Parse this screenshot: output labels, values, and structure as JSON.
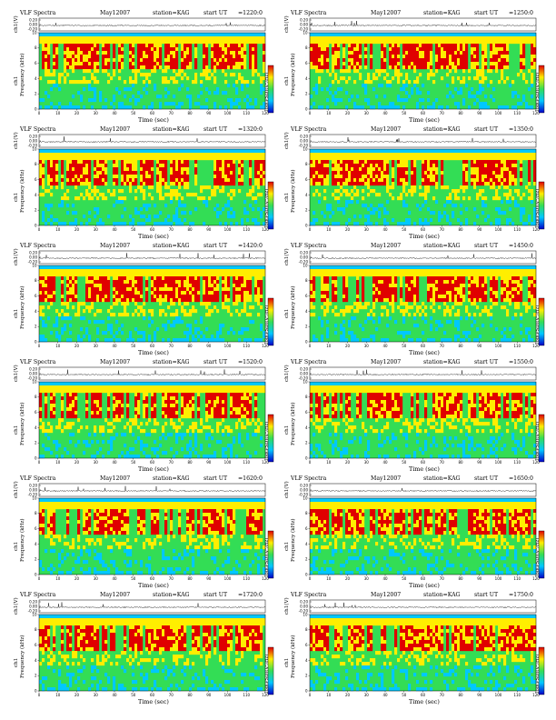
{
  "chart_data": {
    "type": "heatmap",
    "title_prefix": "VLF Spectra",
    "date": "May12007",
    "station": "station=KAG",
    "ut_label": "start  UT",
    "panel_channel": "ch1",
    "waveform_ylabel": "ch1(V)",
    "waveform_ticks": [
      "0.20",
      "0.00",
      "-0.20"
    ],
    "xlabel": "Time  (sec)",
    "ylabel": "Frequency  (kHz)",
    "colorbar_label": "log(PSD)(V²/Hz)",
    "xlim": [
      0,
      120
    ],
    "ylim": [
      0,
      10
    ],
    "x_ticks": [
      "0",
      "10",
      "20",
      "30",
      "40",
      "50",
      "60",
      "70",
      "80",
      "90",
      "100",
      "110",
      "120"
    ],
    "y_ticks": [
      "0",
      "2",
      "4",
      "6",
      "8",
      "10"
    ],
    "panels": [
      {
        "start": "=1220:0"
      },
      {
        "start": "=1250:0"
      },
      {
        "start": "=1320:0"
      },
      {
        "start": "=1350:0"
      },
      {
        "start": "=1420:0"
      },
      {
        "start": "=1450:0"
      },
      {
        "start": "=1520:0"
      },
      {
        "start": "=1550:0"
      },
      {
        "start": "=1620:0"
      },
      {
        "start": "=1650:0"
      },
      {
        "start": "=1720:0"
      },
      {
        "start": "=1750:0"
      }
    ],
    "colors": {
      "low": "#0000c8",
      "mid_low": "#00c8ff",
      "mid": "#33dd55",
      "mid_high": "#ffee00",
      "high": "#e00000"
    }
  }
}
